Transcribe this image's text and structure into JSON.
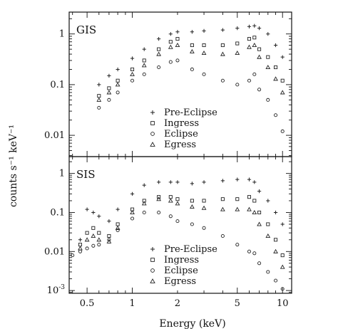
{
  "chart_data": [
    {
      "panel": "top",
      "type": "scatter",
      "label": "GIS",
      "xscale": "log",
      "yscale": "log",
      "xlim": [
        0.38,
        11.5
      ],
      "ylim": [
        0.0038,
        2.7
      ],
      "x_ticks": [
        0.5,
        1,
        2,
        5,
        10
      ],
      "y_ticks": [
        {
          "value": 0.01,
          "label": "0.01"
        },
        {
          "value": 0.1,
          "label": "0.1"
        },
        {
          "value": 1,
          "label": "1"
        }
      ],
      "legend": {
        "position": "lower-center",
        "entries": [
          "Pre-Eclipse",
          "Ingress",
          "Eclipse",
          "Egress"
        ]
      },
      "series": [
        {
          "name": "Pre-Eclipse",
          "marker": "+",
          "x": [
            0.6,
            0.7,
            0.8,
            1.0,
            1.2,
            1.5,
            1.8,
            2.0,
            2.5,
            3.0,
            4.0,
            5.0,
            6.0,
            6.5,
            7.0,
            8.0,
            9.0,
            10.0
          ],
          "y": [
            0.1,
            0.15,
            0.2,
            0.33,
            0.5,
            0.8,
            1.0,
            1.1,
            1.1,
            1.15,
            1.2,
            1.3,
            1.4,
            1.45,
            1.3,
            1.0,
            0.6,
            0.35
          ]
        },
        {
          "name": "Ingress",
          "marker": "square",
          "x": [
            0.6,
            0.7,
            0.8,
            1.0,
            1.2,
            1.5,
            1.8,
            2.0,
            2.5,
            3.0,
            4.0,
            5.0,
            6.0,
            6.5,
            7.0,
            8.0,
            9.0,
            10.0
          ],
          "y": [
            0.06,
            0.085,
            0.12,
            0.2,
            0.3,
            0.5,
            0.7,
            0.8,
            0.6,
            0.6,
            0.6,
            0.65,
            0.8,
            0.85,
            0.5,
            0.35,
            0.22,
            0.12
          ]
        },
        {
          "name": "Eclipse",
          "marker": "circle",
          "x": [
            0.6,
            0.7,
            0.8,
            1.0,
            1.2,
            1.5,
            1.8,
            2.0,
            2.5,
            3.0,
            4.0,
            5.0,
            6.0,
            6.5,
            7.0,
            8.0,
            9.0,
            10.0
          ],
          "y": [
            0.035,
            0.05,
            0.07,
            0.12,
            0.16,
            0.22,
            0.28,
            0.3,
            0.2,
            0.16,
            0.12,
            0.1,
            0.12,
            0.16,
            0.08,
            0.05,
            0.025,
            0.012
          ]
        },
        {
          "name": "Egress",
          "marker": "triangle",
          "x": [
            0.6,
            0.7,
            0.8,
            1.0,
            1.2,
            1.5,
            1.8,
            2.0,
            2.5,
            3.0,
            4.0,
            5.0,
            6.0,
            6.5,
            7.0,
            8.0,
            9.0,
            10.0
          ],
          "y": [
            0.05,
            0.07,
            0.1,
            0.16,
            0.24,
            0.4,
            0.55,
            0.6,
            0.45,
            0.42,
            0.4,
            0.42,
            0.55,
            0.6,
            0.35,
            0.22,
            0.13,
            0.07
          ]
        }
      ]
    },
    {
      "panel": "bottom",
      "type": "scatter",
      "label": "SIS",
      "xscale": "log",
      "yscale": "log",
      "xlim": [
        0.38,
        11.5
      ],
      "ylim": [
        0.00085,
        2.7
      ],
      "x_ticks": [
        0.5,
        1,
        2,
        5,
        10
      ],
      "y_ticks": [
        {
          "value": 0.001,
          "label": "10",
          "sup": "-3"
        },
        {
          "value": 0.01,
          "label": "0.01"
        },
        {
          "value": 0.1,
          "label": "0.1"
        },
        {
          "value": 1,
          "label": "1"
        }
      ],
      "legend": {
        "position": "lower-center",
        "entries": [
          "Pre-Eclipse",
          "Ingress",
          "Eclipse",
          "Egress"
        ]
      },
      "series": [
        {
          "name": "Pre-Eclipse",
          "marker": "+",
          "x": [
            0.45,
            0.5,
            0.55,
            0.6,
            0.7,
            0.8,
            1.0,
            1.2,
            1.5,
            1.8,
            2.0,
            2.5,
            3.0,
            4.0,
            5.0,
            6.0,
            6.5,
            7.0,
            8.0,
            9.0,
            10.0
          ],
          "y": [
            0.02,
            0.12,
            0.1,
            0.08,
            0.06,
            0.12,
            0.3,
            0.5,
            0.6,
            0.6,
            0.6,
            0.55,
            0.6,
            0.65,
            0.7,
            0.7,
            0.6,
            0.35,
            0.2,
            0.1,
            0.05
          ]
        },
        {
          "name": "Ingress",
          "marker": "square",
          "x": [
            0.45,
            0.5,
            0.55,
            0.6,
            0.7,
            0.8,
            1.0,
            1.2,
            1.5,
            1.8,
            2.0,
            2.5,
            3.0,
            4.0,
            5.0,
            6.0,
            6.5,
            7.0,
            8.0,
            9.0,
            10.0
          ],
          "y": [
            0.015,
            0.03,
            0.04,
            0.03,
            0.025,
            0.05,
            0.12,
            0.2,
            0.25,
            0.25,
            0.22,
            0.2,
            0.2,
            0.22,
            0.22,
            0.25,
            0.2,
            0.1,
            0.05,
            0.02,
            0.008
          ]
        },
        {
          "name": "Eclipse",
          "marker": "circle",
          "x": [
            0.4,
            0.45,
            0.5,
            0.55,
            0.6,
            0.7,
            0.8,
            1.0,
            1.2,
            1.5,
            1.8,
            2.0,
            2.5,
            3.0,
            4.0,
            5.0,
            6.0,
            6.5,
            7.0,
            8.0,
            9.0,
            10.0
          ],
          "y": [
            0.008,
            0.01,
            0.012,
            0.014,
            0.015,
            0.02,
            0.035,
            0.07,
            0.1,
            0.1,
            0.08,
            0.06,
            0.05,
            0.04,
            0.025,
            0.015,
            0.01,
            0.009,
            0.005,
            0.003,
            0.0018,
            0.0011
          ]
        },
        {
          "name": "Egress",
          "marker": "triangle",
          "x": [
            0.45,
            0.5,
            0.55,
            0.6,
            0.7,
            0.8,
            1.0,
            1.2,
            1.5,
            1.8,
            2.0,
            2.5,
            3.0,
            4.0,
            5.0,
            6.0,
            6.5,
            7.0,
            8.0,
            9.0,
            10.0
          ],
          "y": [
            0.012,
            0.02,
            0.025,
            0.02,
            0.018,
            0.04,
            0.1,
            0.17,
            0.22,
            0.2,
            0.17,
            0.14,
            0.13,
            0.12,
            0.12,
            0.12,
            0.1,
            0.05,
            0.025,
            0.01,
            0.004
          ]
        }
      ]
    }
  ],
  "axes": {
    "xlabel": "Energy (keV)",
    "ylabel": "counts s⁻¹ keV⁻¹"
  }
}
